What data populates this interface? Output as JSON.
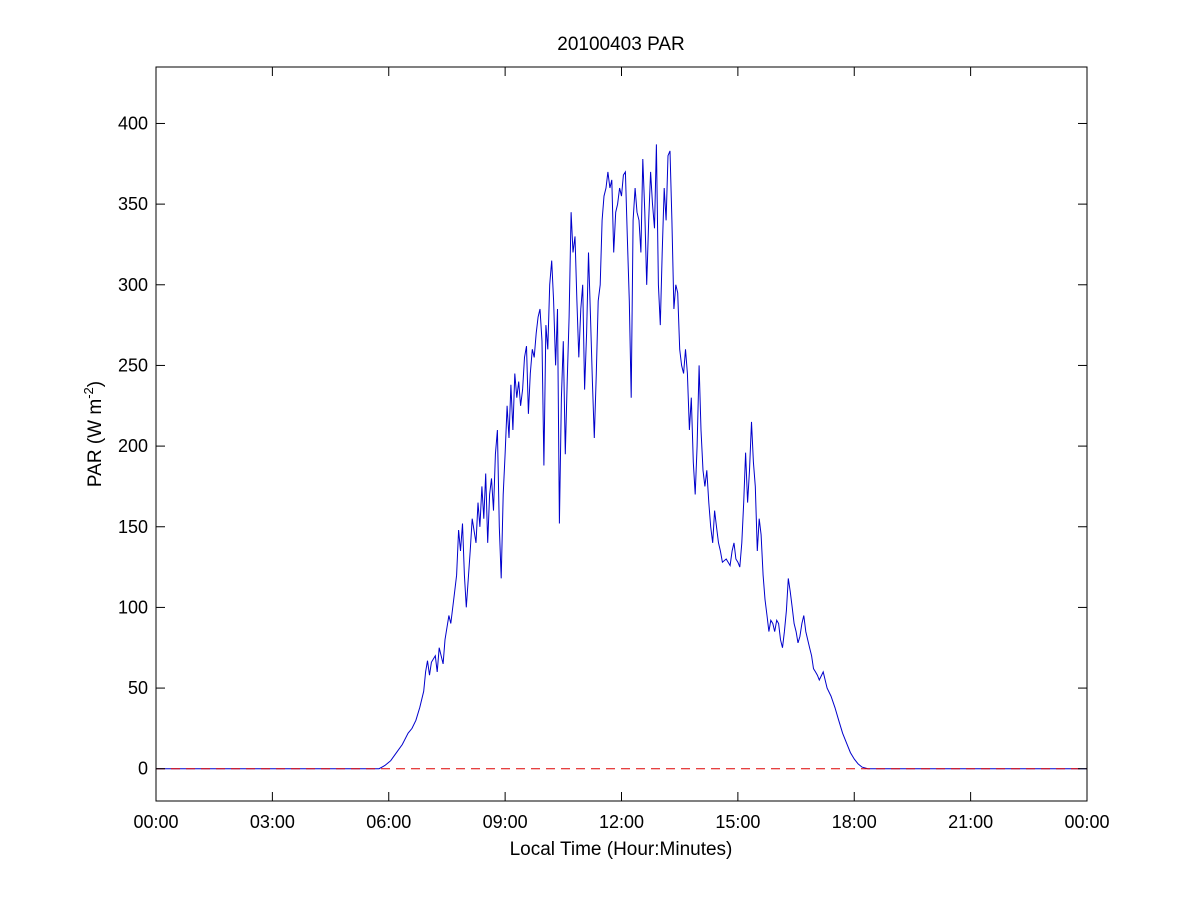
{
  "chart_data": {
    "type": "line",
    "title": "20100403 PAR",
    "xlabel": "Local Time (Hour:Minutes)",
    "ylabel": {
      "text": "PAR (W m",
      "sup": "-2",
      "close": ")"
    },
    "xlim": [
      0,
      24
    ],
    "ylim": [
      -20,
      435
    ],
    "xticks": [
      {
        "value": 0,
        "label": "00:00"
      },
      {
        "value": 3,
        "label": "03:00"
      },
      {
        "value": 6,
        "label": "06:00"
      },
      {
        "value": 9,
        "label": "09:00"
      },
      {
        "value": 12,
        "label": "12:00"
      },
      {
        "value": 15,
        "label": "15:00"
      },
      {
        "value": 18,
        "label": "18:00"
      },
      {
        "value": 21,
        "label": "21:00"
      },
      {
        "value": 24,
        "label": "00:00"
      }
    ],
    "yticks": [
      {
        "value": 0,
        "label": "0"
      },
      {
        "value": 50,
        "label": "50"
      },
      {
        "value": 100,
        "label": "100"
      },
      {
        "value": 150,
        "label": "150"
      },
      {
        "value": 200,
        "label": "200"
      },
      {
        "value": 250,
        "label": "250"
      },
      {
        "value": 300,
        "label": "300"
      },
      {
        "value": 350,
        "label": "350"
      },
      {
        "value": 400,
        "label": "400"
      }
    ],
    "grid": false,
    "series": [
      {
        "style": "solid",
        "color": "#0000cc",
        "points": [
          [
            0,
            0
          ],
          [
            5.75,
            0
          ],
          [
            5.9,
            2
          ],
          [
            6.05,
            5
          ],
          [
            6.2,
            10
          ],
          [
            6.35,
            15
          ],
          [
            6.5,
            22
          ],
          [
            6.6,
            25
          ],
          [
            6.7,
            30
          ],
          [
            6.8,
            38
          ],
          [
            6.9,
            48
          ],
          [
            6.95,
            60
          ],
          [
            7.0,
            67
          ],
          [
            7.05,
            58
          ],
          [
            7.1,
            66
          ],
          [
            7.2,
            70
          ],
          [
            7.25,
            60
          ],
          [
            7.3,
            75
          ],
          [
            7.4,
            65
          ],
          [
            7.45,
            80
          ],
          [
            7.55,
            95
          ],
          [
            7.6,
            90
          ],
          [
            7.7,
            110
          ],
          [
            7.75,
            120
          ],
          [
            7.8,
            148
          ],
          [
            7.85,
            135
          ],
          [
            7.9,
            152
          ],
          [
            7.95,
            120
          ],
          [
            8.0,
            100
          ],
          [
            8.1,
            135
          ],
          [
            8.15,
            155
          ],
          [
            8.25,
            140
          ],
          [
            8.3,
            165
          ],
          [
            8.35,
            150
          ],
          [
            8.4,
            175
          ],
          [
            8.45,
            155
          ],
          [
            8.5,
            183
          ],
          [
            8.55,
            140
          ],
          [
            8.6,
            170
          ],
          [
            8.65,
            180
          ],
          [
            8.7,
            160
          ],
          [
            8.75,
            195
          ],
          [
            8.8,
            210
          ],
          [
            8.85,
            150
          ],
          [
            8.9,
            118
          ],
          [
            8.95,
            170
          ],
          [
            9.0,
            195
          ],
          [
            9.05,
            225
          ],
          [
            9.1,
            205
          ],
          [
            9.15,
            238
          ],
          [
            9.2,
            210
          ],
          [
            9.25,
            245
          ],
          [
            9.3,
            230
          ],
          [
            9.35,
            240
          ],
          [
            9.4,
            225
          ],
          [
            9.45,
            235
          ],
          [
            9.5,
            255
          ],
          [
            9.55,
            262
          ],
          [
            9.6,
            220
          ],
          [
            9.65,
            245
          ],
          [
            9.7,
            260
          ],
          [
            9.75,
            255
          ],
          [
            9.8,
            270
          ],
          [
            9.85,
            280
          ],
          [
            9.9,
            285
          ],
          [
            9.95,
            265
          ],
          [
            10.0,
            188
          ],
          [
            10.05,
            275
          ],
          [
            10.1,
            260
          ],
          [
            10.15,
            300
          ],
          [
            10.2,
            315
          ],
          [
            10.25,
            290
          ],
          [
            10.3,
            250
          ],
          [
            10.35,
            285
          ],
          [
            10.4,
            152
          ],
          [
            10.45,
            230
          ],
          [
            10.5,
            265
          ],
          [
            10.55,
            195
          ],
          [
            10.6,
            240
          ],
          [
            10.65,
            280
          ],
          [
            10.7,
            345
          ],
          [
            10.75,
            320
          ],
          [
            10.8,
            330
          ],
          [
            10.85,
            290
          ],
          [
            10.9,
            255
          ],
          [
            10.95,
            285
          ],
          [
            11.0,
            300
          ],
          [
            11.05,
            235
          ],
          [
            11.1,
            270
          ],
          [
            11.15,
            320
          ],
          [
            11.2,
            280
          ],
          [
            11.25,
            240
          ],
          [
            11.3,
            205
          ],
          [
            11.35,
            245
          ],
          [
            11.4,
            290
          ],
          [
            11.45,
            300
          ],
          [
            11.5,
            340
          ],
          [
            11.55,
            355
          ],
          [
            11.6,
            360
          ],
          [
            11.65,
            370
          ],
          [
            11.7,
            360
          ],
          [
            11.75,
            365
          ],
          [
            11.8,
            320
          ],
          [
            11.85,
            345
          ],
          [
            11.9,
            350
          ],
          [
            11.95,
            360
          ],
          [
            12.0,
            355
          ],
          [
            12.05,
            368
          ],
          [
            12.1,
            370
          ],
          [
            12.15,
            330
          ],
          [
            12.2,
            290
          ],
          [
            12.25,
            230
          ],
          [
            12.3,
            340
          ],
          [
            12.35,
            360
          ],
          [
            12.4,
            345
          ],
          [
            12.45,
            340
          ],
          [
            12.5,
            320
          ],
          [
            12.55,
            378
          ],
          [
            12.6,
            345
          ],
          [
            12.65,
            300
          ],
          [
            12.7,
            340
          ],
          [
            12.75,
            370
          ],
          [
            12.8,
            350
          ],
          [
            12.85,
            335
          ],
          [
            12.9,
            387
          ],
          [
            12.95,
            300
          ],
          [
            13.0,
            275
          ],
          [
            13.05,
            320
          ],
          [
            13.1,
            360
          ],
          [
            13.15,
            340
          ],
          [
            13.2,
            380
          ],
          [
            13.25,
            383
          ],
          [
            13.3,
            340
          ],
          [
            13.35,
            285
          ],
          [
            13.4,
            300
          ],
          [
            13.45,
            295
          ],
          [
            13.5,
            260
          ],
          [
            13.55,
            250
          ],
          [
            13.6,
            245
          ],
          [
            13.65,
            260
          ],
          [
            13.7,
            245
          ],
          [
            13.75,
            210
          ],
          [
            13.8,
            230
          ],
          [
            13.85,
            190
          ],
          [
            13.9,
            170
          ],
          [
            13.95,
            200
          ],
          [
            14.0,
            250
          ],
          [
            14.05,
            210
          ],
          [
            14.1,
            185
          ],
          [
            14.15,
            175
          ],
          [
            14.2,
            185
          ],
          [
            14.25,
            165
          ],
          [
            14.3,
            150
          ],
          [
            14.35,
            140
          ],
          [
            14.4,
            160
          ],
          [
            14.45,
            150
          ],
          [
            14.5,
            140
          ],
          [
            14.55,
            135
          ],
          [
            14.6,
            128
          ],
          [
            14.7,
            130
          ],
          [
            14.8,
            126
          ],
          [
            14.85,
            135
          ],
          [
            14.9,
            140
          ],
          [
            14.95,
            130
          ],
          [
            15.0,
            128
          ],
          [
            15.05,
            125
          ],
          [
            15.1,
            140
          ],
          [
            15.15,
            165
          ],
          [
            15.2,
            196
          ],
          [
            15.25,
            165
          ],
          [
            15.3,
            185
          ],
          [
            15.35,
            215
          ],
          [
            15.4,
            190
          ],
          [
            15.45,
            175
          ],
          [
            15.5,
            135
          ],
          [
            15.55,
            155
          ],
          [
            15.6,
            145
          ],
          [
            15.65,
            120
          ],
          [
            15.7,
            105
          ],
          [
            15.75,
            95
          ],
          [
            15.8,
            85
          ],
          [
            15.85,
            92
          ],
          [
            15.9,
            90
          ],
          [
            15.95,
            85
          ],
          [
            16.0,
            92
          ],
          [
            16.05,
            90
          ],
          [
            16.1,
            80
          ],
          [
            16.15,
            75
          ],
          [
            16.2,
            85
          ],
          [
            16.25,
            98
          ],
          [
            16.3,
            118
          ],
          [
            16.35,
            110
          ],
          [
            16.4,
            100
          ],
          [
            16.45,
            90
          ],
          [
            16.5,
            85
          ],
          [
            16.55,
            78
          ],
          [
            16.6,
            82
          ],
          [
            16.65,
            90
          ],
          [
            16.7,
            95
          ],
          [
            16.75,
            85
          ],
          [
            16.8,
            80
          ],
          [
            16.85,
            75
          ],
          [
            16.9,
            70
          ],
          [
            16.95,
            62
          ],
          [
            17.0,
            60
          ],
          [
            17.05,
            58
          ],
          [
            17.1,
            55
          ],
          [
            17.2,
            60
          ],
          [
            17.3,
            50
          ],
          [
            17.4,
            45
          ],
          [
            17.5,
            38
          ],
          [
            17.6,
            30
          ],
          [
            17.7,
            22
          ],
          [
            17.8,
            16
          ],
          [
            17.9,
            10
          ],
          [
            18.0,
            6
          ],
          [
            18.1,
            3
          ],
          [
            18.2,
            1
          ],
          [
            18.35,
            0
          ],
          [
            24,
            0
          ]
        ]
      },
      {
        "style": "dashed",
        "color": "#dd0000",
        "points": [
          [
            0,
            0
          ],
          [
            24,
            0
          ]
        ]
      }
    ]
  }
}
